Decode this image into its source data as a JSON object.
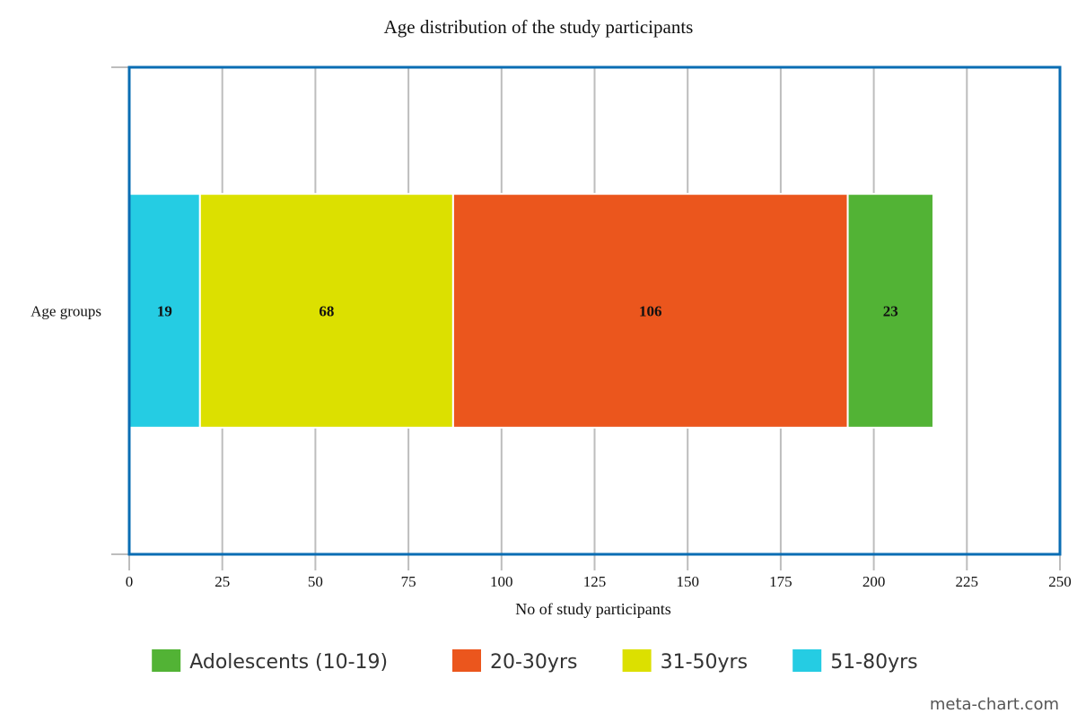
{
  "chart_data": {
    "type": "bar",
    "orientation": "horizontal",
    "stacked": true,
    "title": "Age distribution of the study participants",
    "xlabel": "No of study participants",
    "ylabel": "",
    "categories": [
      "Age groups"
    ],
    "xlim": [
      0,
      250
    ],
    "x_ticks": [
      0,
      25,
      50,
      75,
      100,
      125,
      150,
      175,
      200,
      225,
      250
    ],
    "grid": true,
    "legend_position": "bottom",
    "series": [
      {
        "name": "51-80yrs",
        "values": [
          19
        ],
        "color": "#25cce3"
      },
      {
        "name": "31-50yrs",
        "values": [
          68
        ],
        "color": "#dce000"
      },
      {
        "name": "20-30yrs",
        "values": [
          106
        ],
        "color": "#eb561d"
      },
      {
        "name": "Adolescents (10-19)",
        "values": [
          23
        ],
        "color": "#52b335"
      }
    ],
    "legend_order": [
      "Adolescents (10-19)",
      "20-30yrs",
      "31-50yrs",
      "51-80yrs"
    ],
    "colors": {
      "frame": "#0a6db3",
      "grid": "#bdbdbd"
    }
  },
  "credit": "meta-chart.com"
}
